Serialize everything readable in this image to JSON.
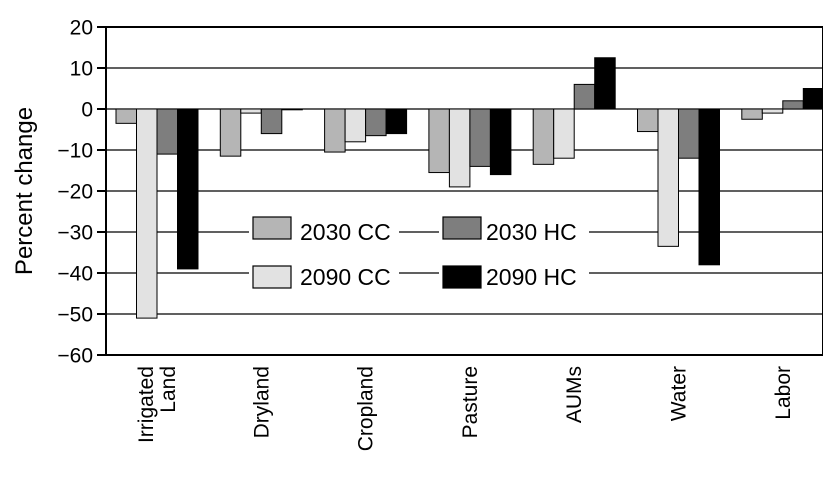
{
  "chart_data": {
    "type": "bar",
    "ylabel": "Percent change",
    "ylim": [
      -60,
      20
    ],
    "yticks": [
      20,
      10,
      0,
      -10,
      -20,
      -30,
      -40,
      -50,
      -60
    ],
    "ytick_labels": [
      "20",
      "10",
      "0",
      "−10",
      "−20",
      "−30",
      "−40",
      "−50",
      "−60"
    ],
    "grid": "horizontal",
    "legend_position": "center-left",
    "categories": [
      [
        "Irrigated",
        "Land"
      ],
      [
        "Dryland"
      ],
      [
        "Cropland"
      ],
      [
        "Pasture"
      ],
      [
        "AUMs"
      ],
      [
        "Water"
      ],
      [
        "Labor"
      ]
    ],
    "series": [
      {
        "name": "2030 CC",
        "color": "#b5b5b5",
        "values": [
          -3.5,
          -11.5,
          -10.5,
          -15.5,
          -13.5,
          -5.5,
          -2.5
        ]
      },
      {
        "name": "2090 CC",
        "color": "#e2e2e2",
        "values": [
          -51,
          -1,
          -8,
          -19,
          -12,
          -33.5,
          -1
        ]
      },
      {
        "name": "2030 HC",
        "color": "#7e7e7e",
        "values": [
          -11,
          -6,
          -6.5,
          -14,
          6,
          -12,
          2
        ]
      },
      {
        "name": "2090 HC",
        "color": "#000000",
        "values": [
          -39,
          0,
          -6,
          -16,
          12.5,
          -38,
          5
        ]
      }
    ]
  }
}
